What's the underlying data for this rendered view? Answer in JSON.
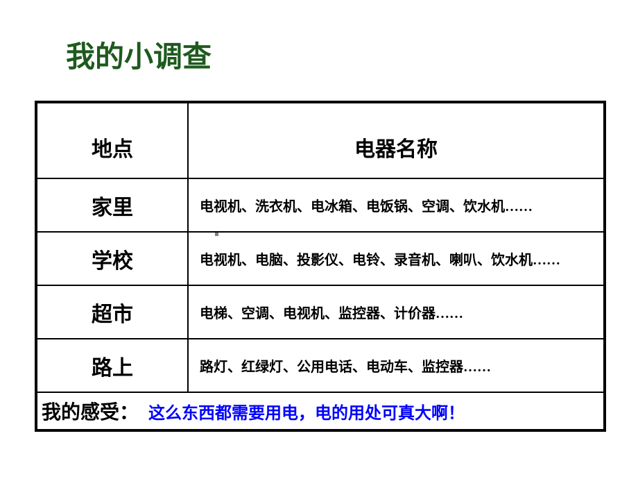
{
  "title": "我的小调查",
  "table": {
    "headers": {
      "location": "地点",
      "name": "电器名称"
    },
    "rows": [
      {
        "location": "家里",
        "appliances": "电视机、洗衣机、电冰箱、电饭锅、空调、饮水机……"
      },
      {
        "location": "学校",
        "appliances": "电视机、电脑、投影仪、电铃、录音机、喇叭、饮水机……"
      },
      {
        "location": "超市",
        "appliances": "电梯、空调、电视机、监控器、计价器……"
      },
      {
        "location": "路上",
        "appliances": "路灯、红绿灯、公用电话、电动车、监控器……"
      }
    ],
    "feeling": {
      "label": "我的感受：",
      "content": "这么东西都需要用电，电的用处可真大啊！"
    }
  },
  "colors": {
    "title": "#1e5a1e",
    "text": "#000000",
    "feeling_text": "#0000ff",
    "border": "#000000",
    "background": "#ffffff"
  }
}
